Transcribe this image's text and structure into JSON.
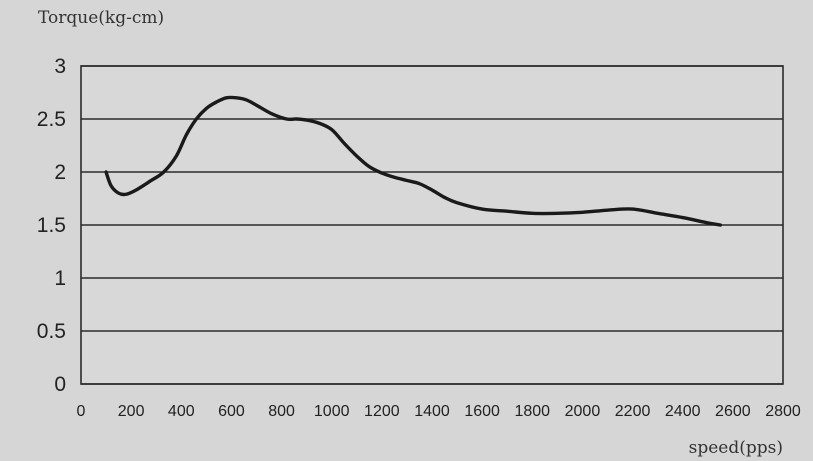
{
  "chart_data": {
    "type": "line",
    "title": "",
    "ylabel": "Torque(kg-cm)",
    "xlabel": "speed(pps)",
    "xlim": [
      0,
      2800
    ],
    "ylim": [
      0,
      3
    ],
    "x_ticks": [
      "0",
      "200",
      "400",
      "600",
      "800",
      "1000",
      "1200",
      "1400",
      "1600",
      "1800",
      "2000",
      "2200",
      "2400",
      "2600",
      "2800"
    ],
    "y_ticks": [
      "0",
      "0.5",
      "1",
      "1.5",
      "2",
      "2.5",
      "3"
    ],
    "grid": "horizontal",
    "series": [
      {
        "x": [
          100,
          120,
          150,
          180,
          220,
          280,
          330,
          380,
          420,
          460,
          500,
          540,
          580,
          620,
          660,
          700,
          760,
          820,
          860,
          900,
          950,
          1000,
          1050,
          1100,
          1150,
          1200,
          1250,
          1300,
          1350,
          1400,
          1450,
          1500,
          1600,
          1700,
          1800,
          1900,
          2000,
          2100,
          2200,
          2300,
          2400,
          2500,
          2550
        ],
        "y": [
          2.0,
          1.87,
          1.8,
          1.79,
          1.83,
          1.92,
          2.0,
          2.15,
          2.35,
          2.5,
          2.6,
          2.66,
          2.7,
          2.7,
          2.68,
          2.63,
          2.55,
          2.5,
          2.5,
          2.49,
          2.46,
          2.4,
          2.27,
          2.15,
          2.05,
          1.99,
          1.95,
          1.92,
          1.89,
          1.83,
          1.76,
          1.71,
          1.65,
          1.63,
          1.61,
          1.61,
          1.62,
          1.64,
          1.65,
          1.61,
          1.57,
          1.52,
          1.5
        ],
        "color": "#1a1a1a"
      }
    ]
  },
  "colors": {
    "background": "#d6d6d6",
    "plot_background": "#d8d8d8",
    "grid": "#2b2b2b",
    "line": "#1a1a1a"
  }
}
